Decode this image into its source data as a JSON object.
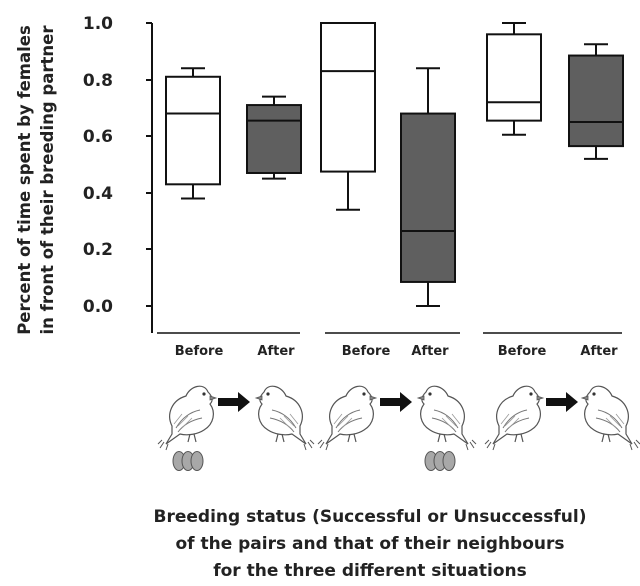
{
  "chart_data": {
    "type": "box",
    "ylabel": [
      "Percent of time spent by females",
      "in front of their breeding partner"
    ],
    "xlabel": [
      "Breeding status (Successful or Unsuccessful)",
      "of the pairs and that of their neighbours",
      "for the three different situations"
    ],
    "ylim": [
      0,
      1.0
    ],
    "yticks": [
      "0.0",
      "0.2",
      "0.4",
      "0.6",
      "0.8",
      "1.0"
    ],
    "groups": [
      {
        "boxes": [
          {
            "label": "Before",
            "fill": "#ffffff",
            "min": 0.38,
            "q1": 0.43,
            "median": 0.68,
            "q3": 0.81,
            "max": 0.84
          },
          {
            "label": "After",
            "fill": "#5f5f5f",
            "min": 0.45,
            "q1": 0.47,
            "median": 0.655,
            "q3": 0.71,
            "max": 0.74
          }
        ],
        "eggs": "before"
      },
      {
        "boxes": [
          {
            "label": "Before",
            "fill": "#ffffff",
            "min": 0.34,
            "q1": 0.475,
            "median": 0.83,
            "q3": 1.0,
            "max": 1.0
          },
          {
            "label": "After",
            "fill": "#5f5f5f",
            "min": 0.0,
            "q1": 0.085,
            "median": 0.265,
            "q3": 0.68,
            "max": 0.84
          }
        ],
        "eggs": "after"
      },
      {
        "boxes": [
          {
            "label": "Before",
            "fill": "#ffffff",
            "min": 0.605,
            "q1": 0.655,
            "median": 0.72,
            "q3": 0.96,
            "max": 1.0
          },
          {
            "label": "After",
            "fill": "#5f5f5f",
            "min": 0.52,
            "q1": 0.565,
            "median": 0.65,
            "q3": 0.885,
            "max": 0.925
          }
        ],
        "eggs": "none"
      }
    ],
    "colors": {
      "before": "#ffffff",
      "after": "#5f5f5f",
      "egg": "#a8a8a8",
      "line": "#111111"
    },
    "icons": [
      "bird-icon",
      "right-arrow-icon",
      "bird-icon",
      "egg-cluster-icon"
    ]
  }
}
